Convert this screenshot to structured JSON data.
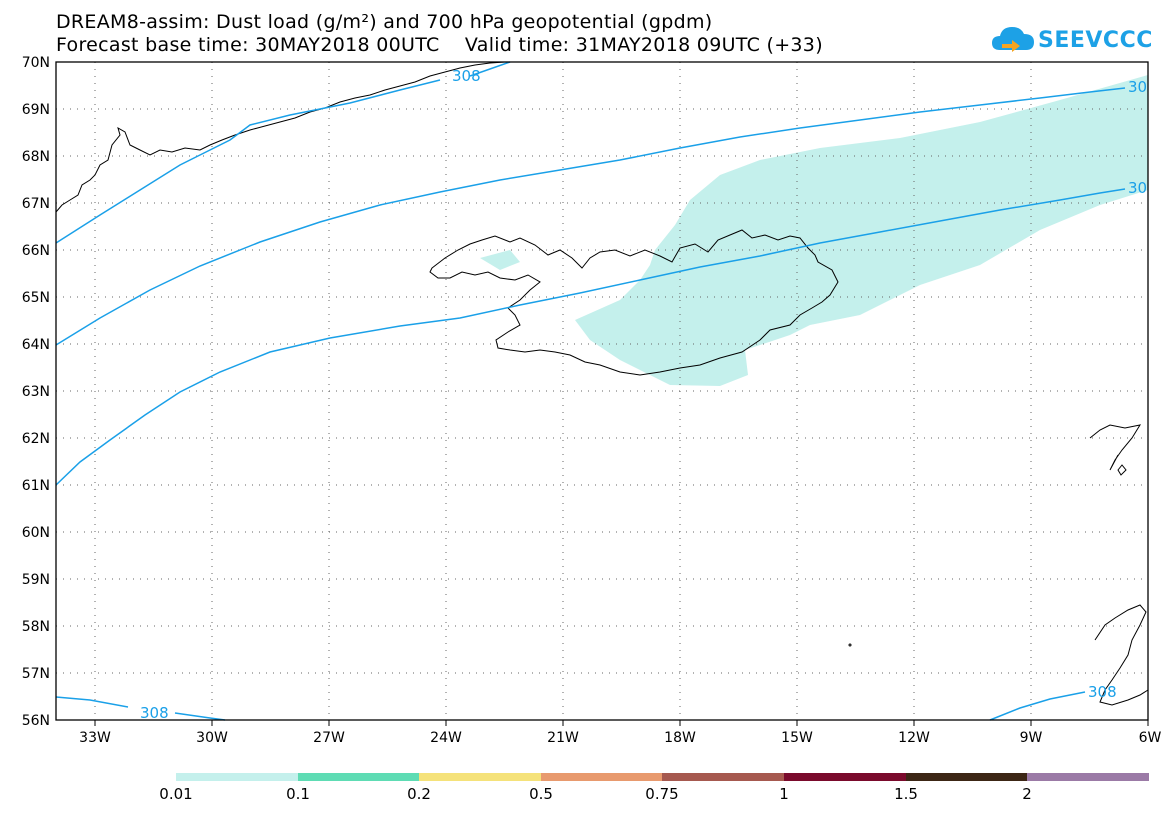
{
  "title": {
    "line1": "DREAM8-assim: Dust load (g/m²) and 700 hPa geopotential (gpdm)",
    "line2": "Forecast base time: 30MAY2018 00UTC    Valid time: 31MAY2018 09UTC (+33)"
  },
  "logo": {
    "text": "SEEVCCC",
    "icon": "cloud-arrow-icon"
  },
  "axes": {
    "lon_ticks": [
      "33W",
      "30W",
      "27W",
      "24W",
      "21W",
      "18W",
      "15W",
      "12W",
      "9W",
      "6W"
    ],
    "lat_ticks": [
      "70N",
      "69N",
      "68N",
      "67N",
      "66N",
      "65N",
      "64N",
      "63N",
      "62N",
      "61N",
      "60N",
      "59N",
      "58N",
      "57N",
      "56N"
    ],
    "lon_range": [
      -34,
      -6
    ],
    "lat_range": [
      56,
      70
    ],
    "grid": "dotted"
  },
  "contour_labels": [
    "308",
    "30",
    "30",
    "308",
    "308"
  ],
  "colorbar": {
    "labels": [
      "0.01",
      "0.1",
      "0.2",
      "0.5",
      "0.75",
      "1",
      "1.5",
      "2"
    ],
    "colors": [
      "#c4f0ec",
      "#5edcb4",
      "#f5e27a",
      "#e89a6e",
      "#a6594f",
      "#7a0a2c",
      "#3c2615",
      "#9b7aa6"
    ]
  },
  "colors": {
    "dust": "#c4f0ec",
    "contour": "#1aa0e8",
    "coast": "#000000"
  }
}
